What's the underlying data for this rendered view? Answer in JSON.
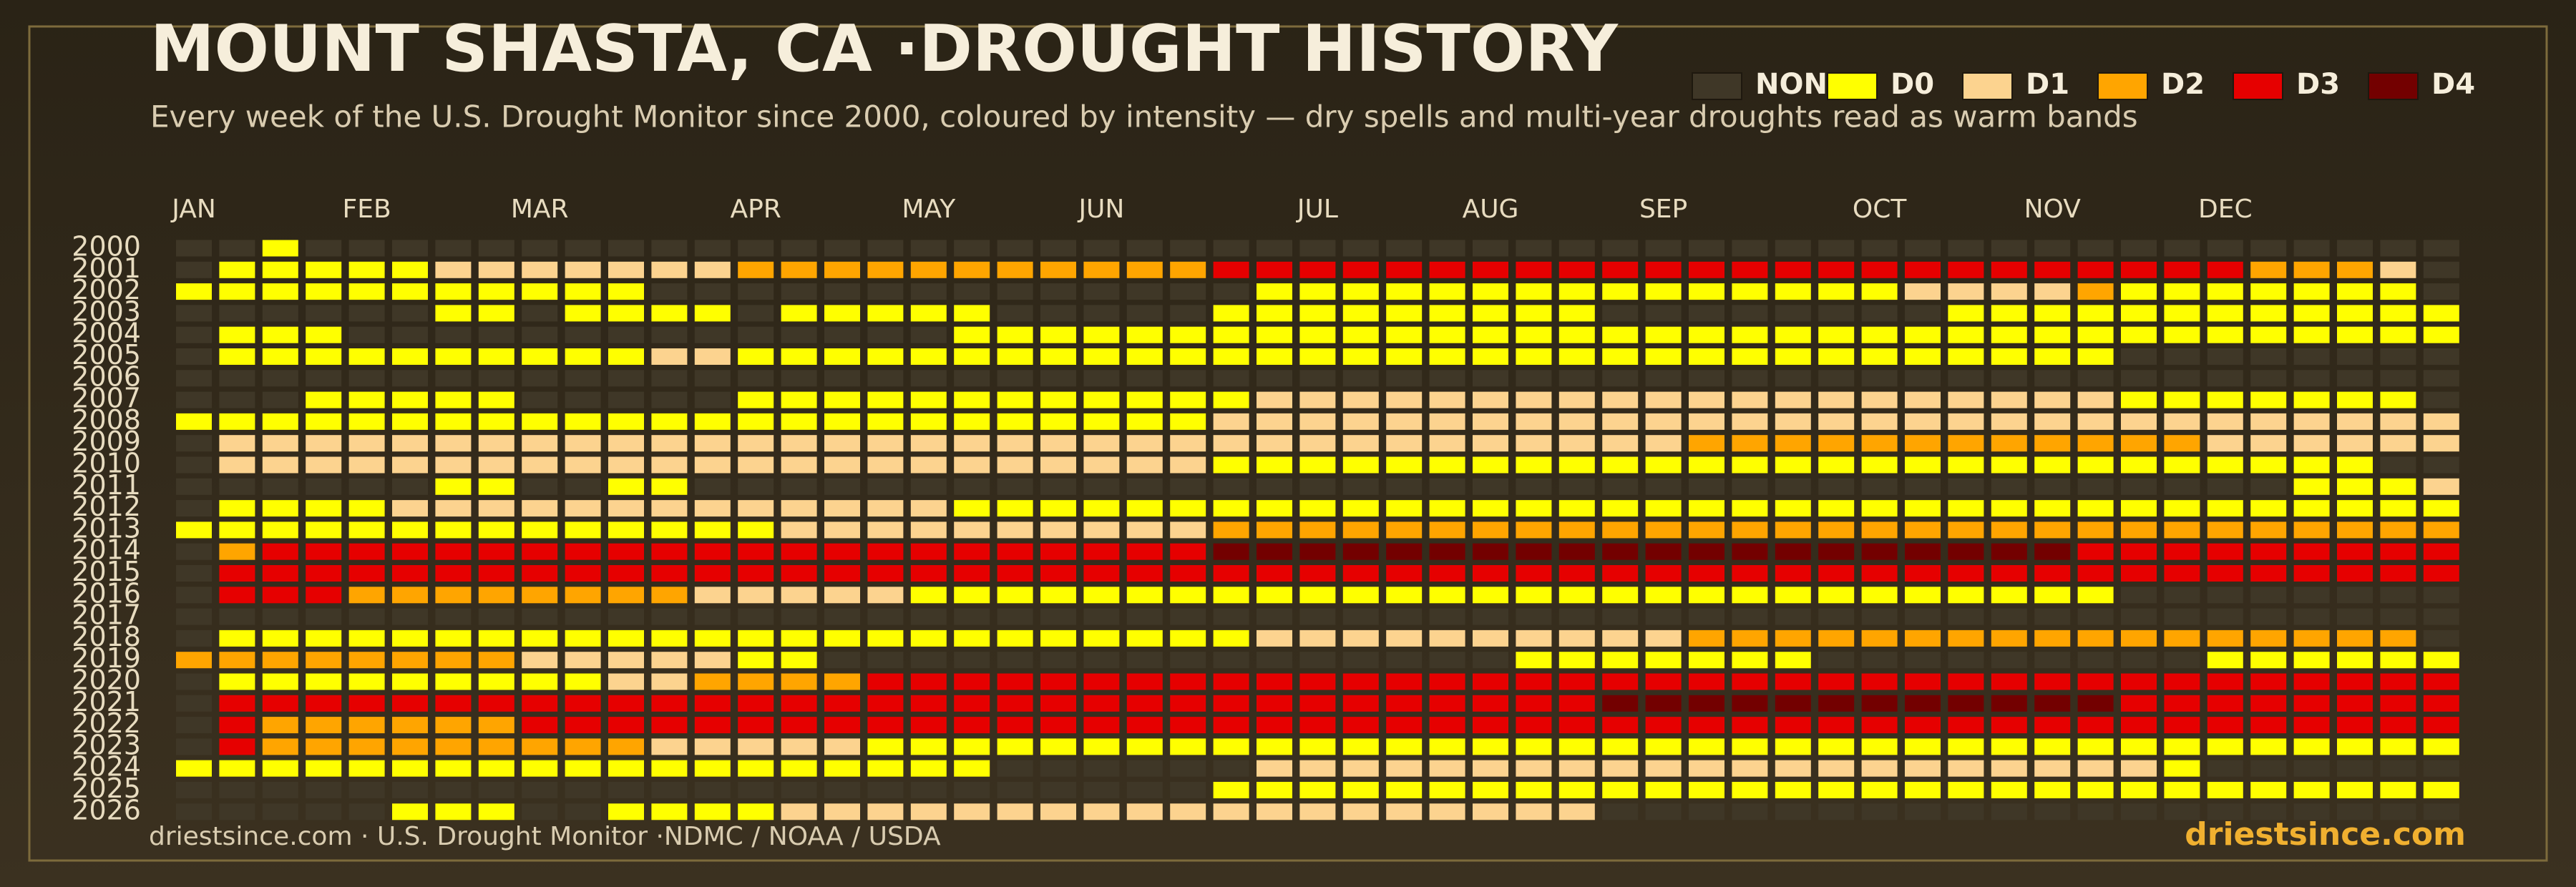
{
  "chart_data": {
    "type": "heatmap",
    "title": "MOUNT SHASTA, CA ·DROUGHT HISTORY",
    "subtitle": "Every week of the U.S. Drought Monitor since 2000, coloured by intensity — dry spells and multi-year droughts read as warm bands",
    "source": "driestsince.com  · U.S. Drought Monitor ·NDMC / NOAA / USDA",
    "brand": "driestsince.com",
    "levels": [
      {
        "name": "NONE",
        "color": "#3f3727"
      },
      {
        "name": "D0",
        "color": "#ffff00"
      },
      {
        "name": "D1",
        "color": "#fcd38f"
      },
      {
        "name": "D2",
        "color": "#ffa500"
      },
      {
        "name": "D3",
        "color": "#e60000"
      },
      {
        "name": "D4",
        "color": "#730000"
      }
    ],
    "x": [
      "JAN",
      null,
      null,
      null,
      "FEB",
      null,
      null,
      null,
      "MAR",
      null,
      null,
      null,
      null,
      "APR",
      null,
      null,
      null,
      "MAY",
      null,
      null,
      null,
      "JUN",
      null,
      null,
      null,
      null,
      "JUL",
      null,
      null,
      null,
      "AUG",
      null,
      null,
      null,
      "SEP",
      null,
      null,
      null,
      null,
      "OCT",
      null,
      null,
      null,
      "NOV",
      null,
      null,
      null,
      "DEC",
      null,
      null,
      null,
      null,
      null
    ],
    "y": [
      "2000",
      "2001",
      "2002",
      "2003",
      "2004",
      "2005",
      "2006",
      "2007",
      "2008",
      "2009",
      "2010",
      "2011",
      "2012",
      "2013",
      "2014",
      "2015",
      "2016",
      "2017",
      "2018",
      "2019",
      "2020",
      "2021",
      "2022",
      "2023",
      "2024",
      "2025",
      "2026"
    ],
    "values": [
      [
        0,
        0,
        1,
        0,
        0,
        0,
        0,
        0,
        0,
        0,
        0,
        0,
        0,
        0,
        0,
        0,
        0,
        0,
        0,
        0,
        0,
        0,
        0,
        0,
        0,
        0,
        0,
        0,
        0,
        0,
        0,
        0,
        0,
        0,
        0,
        0,
        0,
        0,
        0,
        0,
        0,
        0,
        0,
        0,
        0,
        0,
        0,
        0,
        0,
        0,
        0,
        0,
        0
      ],
      [
        0,
        1,
        1,
        1,
        1,
        1,
        2,
        2,
        2,
        2,
        2,
        2,
        2,
        3,
        3,
        3,
        3,
        3,
        3,
        3,
        3,
        3,
        3,
        3,
        4,
        4,
        4,
        4,
        4,
        4,
        4,
        4,
        4,
        4,
        4,
        4,
        4,
        4,
        4,
        4,
        4,
        4,
        4,
        4,
        4,
        4,
        4,
        4,
        3,
        3,
        3,
        2,
        0
      ],
      [
        1,
        1,
        1,
        1,
        1,
        1,
        1,
        1,
        1,
        1,
        1,
        0,
        0,
        0,
        0,
        0,
        0,
        0,
        0,
        0,
        0,
        0,
        0,
        0,
        0,
        1,
        1,
        1,
        1,
        1,
        1,
        1,
        1,
        1,
        1,
        1,
        1,
        1,
        1,
        1,
        2,
        2,
        2,
        2,
        3,
        1,
        1,
        1,
        1,
        1,
        1,
        1,
        0
      ],
      [
        0,
        0,
        0,
        0,
        0,
        0,
        1,
        1,
        0,
        1,
        1,
        1,
        1,
        0,
        1,
        1,
        1,
        1,
        1,
        0,
        0,
        0,
        0,
        0,
        1,
        1,
        1,
        1,
        1,
        1,
        1,
        1,
        1,
        0,
        0,
        0,
        0,
        0,
        0,
        0,
        0,
        1,
        1,
        1,
        1,
        1,
        1,
        1,
        1,
        1,
        1,
        1,
        1
      ],
      [
        0,
        1,
        1,
        1,
        0,
        0,
        0,
        0,
        0,
        0,
        0,
        0,
        0,
        0,
        0,
        0,
        0,
        0,
        1,
        1,
        1,
        1,
        1,
        1,
        1,
        1,
        1,
        1,
        1,
        1,
        1,
        1,
        1,
        1,
        1,
        1,
        1,
        1,
        1,
        1,
        1,
        1,
        1,
        1,
        1,
        1,
        1,
        1,
        1,
        1,
        1,
        1,
        1
      ],
      [
        0,
        1,
        1,
        1,
        1,
        1,
        1,
        1,
        1,
        1,
        1,
        2,
        2,
        1,
        1,
        1,
        1,
        1,
        1,
        1,
        1,
        1,
        1,
        1,
        1,
        1,
        1,
        1,
        1,
        1,
        1,
        1,
        1,
        1,
        1,
        1,
        1,
        1,
        1,
        1,
        1,
        1,
        1,
        1,
        1,
        0,
        0,
        0,
        0,
        0,
        0,
        0,
        0
      ],
      [
        0,
        0,
        0,
        0,
        0,
        0,
        0,
        0,
        0,
        0,
        0,
        0,
        0,
        0,
        0,
        0,
        0,
        0,
        0,
        0,
        0,
        0,
        0,
        0,
        0,
        0,
        0,
        0,
        0,
        0,
        0,
        0,
        0,
        0,
        0,
        0,
        0,
        0,
        0,
        0,
        0,
        0,
        0,
        0,
        0,
        0,
        0,
        0,
        0,
        0,
        0,
        0,
        0
      ],
      [
        0,
        0,
        0,
        1,
        1,
        1,
        1,
        1,
        0,
        0,
        0,
        0,
        0,
        1,
        1,
        1,
        1,
        1,
        1,
        1,
        1,
        1,
        1,
        1,
        1,
        2,
        2,
        2,
        2,
        2,
        2,
        2,
        2,
        2,
        2,
        2,
        2,
        2,
        2,
        2,
        2,
        2,
        2,
        2,
        2,
        1,
        1,
        1,
        1,
        1,
        1,
        1,
        0
      ],
      [
        1,
        1,
        1,
        1,
        1,
        1,
        1,
        1,
        1,
        1,
        1,
        1,
        1,
        1,
        1,
        1,
        1,
        1,
        1,
        1,
        1,
        1,
        1,
        1,
        2,
        2,
        2,
        2,
        2,
        2,
        2,
        2,
        2,
        2,
        2,
        2,
        2,
        2,
        2,
        2,
        2,
        2,
        2,
        2,
        2,
        2,
        2,
        2,
        2,
        2,
        2,
        2,
        2
      ],
      [
        0,
        2,
        2,
        2,
        2,
        2,
        2,
        2,
        2,
        2,
        2,
        2,
        2,
        2,
        2,
        2,
        2,
        2,
        2,
        2,
        2,
        2,
        2,
        2,
        2,
        2,
        2,
        2,
        2,
        2,
        2,
        2,
        2,
        2,
        2,
        3,
        3,
        3,
        3,
        3,
        3,
        3,
        3,
        3,
        3,
        3,
        3,
        2,
        2,
        2,
        2,
        2,
        2
      ],
      [
        0,
        2,
        2,
        2,
        2,
        2,
        2,
        2,
        2,
        2,
        2,
        2,
        2,
        2,
        2,
        2,
        2,
        2,
        2,
        2,
        2,
        2,
        2,
        2,
        1,
        1,
        1,
        1,
        1,
        1,
        1,
        1,
        1,
        1,
        1,
        1,
        1,
        1,
        1,
        1,
        1,
        1,
        1,
        1,
        1,
        1,
        1,
        1,
        1,
        1,
        1,
        0,
        0
      ],
      [
        0,
        0,
        0,
        0,
        0,
        0,
        1,
        1,
        0,
        0,
        1,
        1,
        0,
        0,
        0,
        0,
        0,
        0,
        0,
        0,
        0,
        0,
        0,
        0,
        0,
        0,
        0,
        0,
        0,
        0,
        0,
        0,
        0,
        0,
        0,
        0,
        0,
        0,
        0,
        0,
        0,
        0,
        0,
        0,
        0,
        0,
        0,
        0,
        0,
        1,
        1,
        1,
        2
      ],
      [
        0,
        1,
        1,
        1,
        1,
        2,
        2,
        2,
        2,
        2,
        2,
        2,
        2,
        2,
        2,
        2,
        2,
        2,
        1,
        1,
        1,
        1,
        1,
        1,
        1,
        1,
        1,
        1,
        1,
        1,
        1,
        1,
        1,
        1,
        1,
        1,
        1,
        1,
        1,
        1,
        1,
        1,
        1,
        1,
        1,
        1,
        1,
        1,
        1,
        1,
        1,
        1,
        1
      ],
      [
        1,
        1,
        1,
        1,
        1,
        1,
        1,
        1,
        1,
        1,
        1,
        1,
        1,
        1,
        2,
        2,
        2,
        2,
        2,
        2,
        2,
        2,
        2,
        2,
        3,
        3,
        3,
        3,
        3,
        3,
        3,
        3,
        3,
        3,
        3,
        3,
        3,
        3,
        3,
        3,
        3,
        3,
        3,
        3,
        3,
        3,
        3,
        3,
        3,
        3,
        3,
        3,
        3
      ],
      [
        0,
        3,
        4,
        4,
        4,
        4,
        4,
        4,
        4,
        4,
        4,
        4,
        4,
        4,
        4,
        4,
        4,
        4,
        4,
        4,
        4,
        4,
        4,
        4,
        5,
        5,
        5,
        5,
        5,
        5,
        5,
        5,
        5,
        5,
        5,
        5,
        5,
        5,
        5,
        5,
        5,
        5,
        5,
        5,
        4,
        4,
        4,
        4,
        4,
        4,
        4,
        4,
        4
      ],
      [
        0,
        4,
        4,
        4,
        4,
        4,
        4,
        4,
        4,
        4,
        4,
        4,
        4,
        4,
        4,
        4,
        4,
        4,
        4,
        4,
        4,
        4,
        4,
        4,
        4,
        4,
        4,
        4,
        4,
        4,
        4,
        4,
        4,
        4,
        4,
        4,
        4,
        4,
        4,
        4,
        4,
        4,
        4,
        4,
        4,
        4,
        4,
        4,
        4,
        4,
        4,
        4,
        4
      ],
      [
        0,
        4,
        4,
        4,
        3,
        3,
        3,
        3,
        3,
        3,
        3,
        3,
        2,
        2,
        2,
        2,
        2,
        1,
        1,
        1,
        1,
        1,
        1,
        1,
        1,
        1,
        1,
        1,
        1,
        1,
        1,
        1,
        1,
        1,
        1,
        1,
        1,
        1,
        1,
        1,
        1,
        1,
        1,
        1,
        1,
        0,
        0,
        0,
        0,
        0,
        0,
        0,
        0
      ],
      [
        0,
        0,
        0,
        0,
        0,
        0,
        0,
        0,
        0,
        0,
        0,
        0,
        0,
        0,
        0,
        0,
        0,
        0,
        0,
        0,
        0,
        0,
        0,
        0,
        0,
        0,
        0,
        0,
        0,
        0,
        0,
        0,
        0,
        0,
        0,
        0,
        0,
        0,
        0,
        0,
        0,
        0,
        0,
        0,
        0,
        0,
        0,
        0,
        0,
        0,
        0,
        0,
        0
      ],
      [
        0,
        1,
        1,
        1,
        1,
        1,
        1,
        1,
        1,
        1,
        1,
        1,
        1,
        1,
        1,
        1,
        1,
        1,
        1,
        1,
        1,
        1,
        1,
        1,
        1,
        2,
        2,
        2,
        2,
        2,
        2,
        2,
        2,
        2,
        2,
        3,
        3,
        3,
        3,
        3,
        3,
        3,
        3,
        3,
        3,
        3,
        3,
        3,
        3,
        3,
        3,
        3,
        0
      ],
      [
        3,
        3,
        3,
        3,
        3,
        3,
        3,
        3,
        2,
        2,
        2,
        2,
        2,
        1,
        1,
        0,
        0,
        0,
        0,
        0,
        0,
        0,
        0,
        0,
        0,
        0,
        0,
        0,
        0,
        0,
        0,
        1,
        1,
        1,
        1,
        1,
        1,
        1,
        0,
        0,
        0,
        0,
        0,
        0,
        0,
        0,
        0,
        1,
        1,
        1,
        1,
        1,
        1
      ],
      [
        0,
        1,
        1,
        1,
        1,
        1,
        1,
        1,
        1,
        1,
        2,
        2,
        3,
        3,
        3,
        3,
        4,
        4,
        4,
        4,
        4,
        4,
        4,
        4,
        4,
        4,
        4,
        4,
        4,
        4,
        4,
        4,
        4,
        4,
        4,
        4,
        4,
        4,
        4,
        4,
        4,
        4,
        4,
        4,
        4,
        4,
        4,
        4,
        4,
        4,
        4,
        4,
        4
      ],
      [
        0,
        4,
        4,
        4,
        4,
        4,
        4,
        4,
        4,
        4,
        4,
        4,
        4,
        4,
        4,
        4,
        4,
        4,
        4,
        4,
        4,
        4,
        4,
        4,
        4,
        4,
        4,
        4,
        4,
        4,
        4,
        4,
        4,
        5,
        5,
        5,
        5,
        5,
        5,
        5,
        5,
        5,
        5,
        5,
        5,
        4,
        4,
        4,
        4,
        4,
        4,
        4,
        4
      ],
      [
        0,
        4,
        3,
        3,
        3,
        3,
        3,
        3,
        4,
        4,
        4,
        4,
        4,
        4,
        4,
        4,
        4,
        4,
        4,
        4,
        4,
        4,
        4,
        4,
        4,
        4,
        4,
        4,
        4,
        4,
        4,
        4,
        4,
        4,
        4,
        4,
        4,
        4,
        4,
        4,
        4,
        4,
        4,
        4,
        4,
        4,
        4,
        4,
        4,
        4,
        4,
        4,
        4
      ],
      [
        0,
        4,
        3,
        3,
        3,
        3,
        3,
        3,
        3,
        3,
        3,
        2,
        2,
        2,
        2,
        2,
        1,
        1,
        1,
        1,
        1,
        1,
        1,
        1,
        1,
        1,
        1,
        1,
        1,
        1,
        1,
        1,
        1,
        1,
        1,
        1,
        1,
        1,
        1,
        1,
        1,
        1,
        1,
        1,
        1,
        1,
        1,
        1,
        1,
        1,
        1,
        1,
        1
      ],
      [
        1,
        1,
        1,
        1,
        1,
        1,
        1,
        1,
        1,
        1,
        1,
        1,
        1,
        1,
        1,
        1,
        1,
        1,
        1,
        0,
        0,
        0,
        0,
        0,
        0,
        2,
        2,
        2,
        2,
        2,
        2,
        2,
        2,
        2,
        2,
        2,
        2,
        2,
        2,
        2,
        2,
        2,
        2,
        2,
        2,
        2,
        1,
        0,
        0,
        0,
        0,
        0,
        0
      ],
      [
        0,
        0,
        0,
        0,
        0,
        0,
        0,
        0,
        0,
        0,
        0,
        0,
        0,
        0,
        0,
        0,
        0,
        0,
        0,
        0,
        0,
        0,
        0,
        0,
        1,
        1,
        1,
        1,
        1,
        1,
        1,
        1,
        1,
        1,
        1,
        1,
        1,
        1,
        1,
        1,
        1,
        1,
        1,
        1,
        1,
        1,
        1,
        1,
        1,
        1,
        1,
        1,
        1
      ],
      [
        0,
        0,
        0,
        0,
        0,
        1,
        1,
        1,
        0,
        0,
        1,
        1,
        1,
        1,
        2,
        2,
        2,
        2,
        2,
        2,
        2,
        2,
        2,
        2,
        2,
        2,
        2,
        2,
        2,
        2,
        2,
        2,
        2,
        0,
        0,
        0,
        0,
        0,
        0,
        0,
        0,
        0,
        0,
        0,
        0,
        0,
        0,
        0,
        0,
        0,
        0,
        0,
        0
      ]
    ]
  }
}
